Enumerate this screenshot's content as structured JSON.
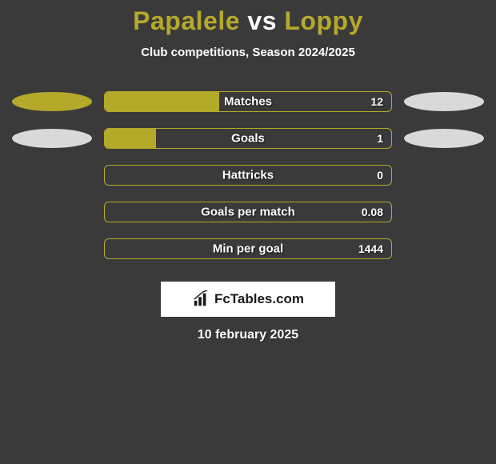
{
  "background_color": "#3a3a3a",
  "title": {
    "player1": "Papalele",
    "vs": "vs",
    "player2": "Loppy",
    "player1_color": "#b5a92b",
    "vs_color": "#ffffff",
    "player2_color": "#b5a92b",
    "fontsize": 32
  },
  "subtitle": {
    "text": "Club competitions, Season 2024/2025",
    "color": "#ffffff",
    "fontsize": 15
  },
  "side_ellipses": {
    "left_row0_color": "#b5a92b",
    "left_row1_color": "#d9d9d9",
    "right_row0_color": "#d9d9d9",
    "right_row1_color": "#d9d9d9",
    "width": 100,
    "height": 24
  },
  "bars": {
    "border_color": "#b5a92b",
    "fill_color": "#b5a92b",
    "label_color": "#ffffff",
    "value_color": "#ffffff",
    "fontsize": 15,
    "items": [
      {
        "label": "Matches",
        "value": "12",
        "fill_pct": 40,
        "has_left_ellipse": true,
        "has_right_ellipse": true,
        "left_ellipse_color": "#b5a92b",
        "right_ellipse_color": "#d9d9d9"
      },
      {
        "label": "Goals",
        "value": "1",
        "fill_pct": 18,
        "has_left_ellipse": true,
        "has_right_ellipse": true,
        "left_ellipse_color": "#d9d9d9",
        "right_ellipse_color": "#d9d9d9"
      },
      {
        "label": "Hattricks",
        "value": "0",
        "fill_pct": 0,
        "has_left_ellipse": false,
        "has_right_ellipse": false
      },
      {
        "label": "Goals per match",
        "value": "0.08",
        "fill_pct": 0,
        "has_left_ellipse": false,
        "has_right_ellipse": false
      },
      {
        "label": "Min per goal",
        "value": "1444",
        "fill_pct": 0,
        "has_left_ellipse": false,
        "has_right_ellipse": false
      }
    ]
  },
  "brand": {
    "text": "FcTables.com",
    "box_bg": "#ffffff",
    "text_color": "#1a1a1a",
    "icon_color": "#1a1a1a",
    "fontsize": 17
  },
  "date": {
    "text": "10 february 2025",
    "color": "#ffffff",
    "fontsize": 16
  }
}
